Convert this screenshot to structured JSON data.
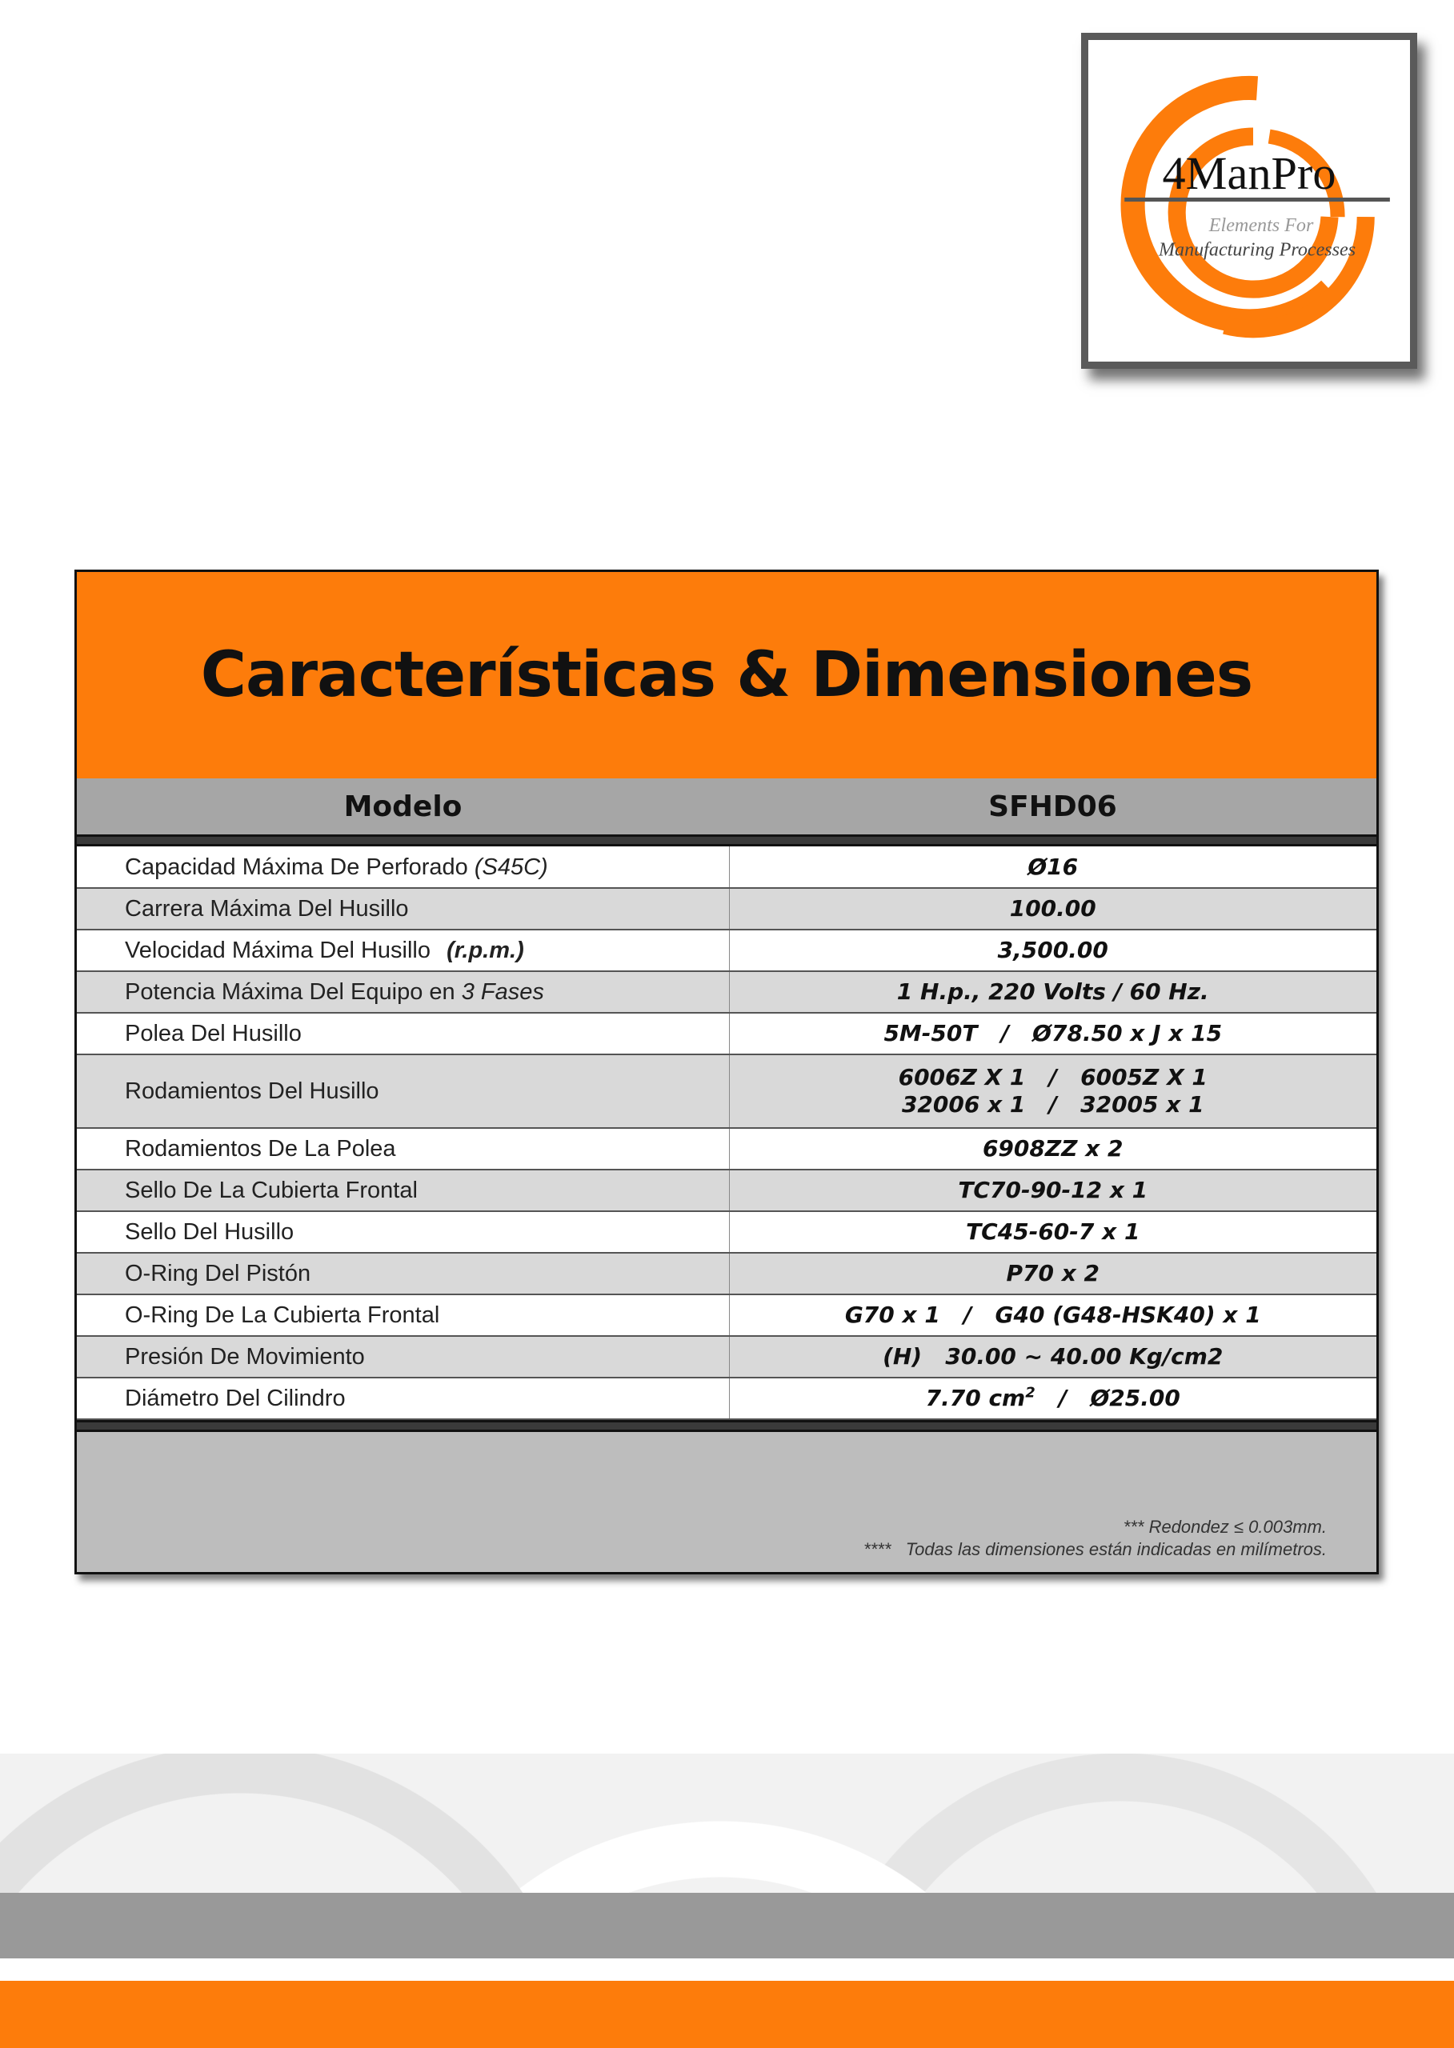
{
  "logo": {
    "brand": "4ManPro",
    "tagline_1": "Elements For",
    "tagline_2": "Manufacturing Processes",
    "accent": "#fd7c0b"
  },
  "title": "Características & Dimensiones",
  "header": {
    "label": "Modelo",
    "model": "SFHD06"
  },
  "rows": [
    {
      "label": "Capacidad Máxima De Perforado",
      "label_em": "(S45C)",
      "value": "Ø16"
    },
    {
      "label": "Carrera Máxima Del Husillo",
      "value": "100.00"
    },
    {
      "label": "Velocidad Máxima Del Husillo",
      "label_em": "(r.p.m.)",
      "value": "3,500.00"
    },
    {
      "label": "Potencia Máxima Del Equipo en",
      "label_em": "3 Fases",
      "value": "1 H.p., 220 Volts / 60 Hz."
    },
    {
      "label": "Polea Del Husillo",
      "value": "5M-50T   /   Ø78.50 x J x 15"
    },
    {
      "label": "Rodamientos Del Husillo",
      "value": "6006Z X 1   /   6005Z X 1",
      "value2": "32006 x 1   /   32005 x 1"
    },
    {
      "label": "Rodamientos De La Polea",
      "value": "6908ZZ x 2"
    },
    {
      "label": "Sello De La Cubierta Frontal",
      "value": "TC70-90-12 x 1"
    },
    {
      "label": "Sello Del Husillo",
      "value": "TC45-60-7 x 1"
    },
    {
      "label": "O-Ring Del Pistón",
      "value": "P70 x 2"
    },
    {
      "label": "O-Ring De La Cubierta Frontal",
      "value": "G70 x 1   /   G40 (G48-HSK40) x 1"
    },
    {
      "label": "Presión De Movimiento",
      "value": "(H)   30.00 ~ 40.00 Kg/cm2"
    },
    {
      "label": "Diámetro Del Cilindro",
      "value": "7.70 cm",
      "value_sup": "2",
      "value_tail": "   /   Ø25.00"
    }
  ],
  "notes": [
    "*** Redondez ≤ 0.003mm.",
    "****   Todas las dimensiones están indicadas en milímetros."
  ]
}
